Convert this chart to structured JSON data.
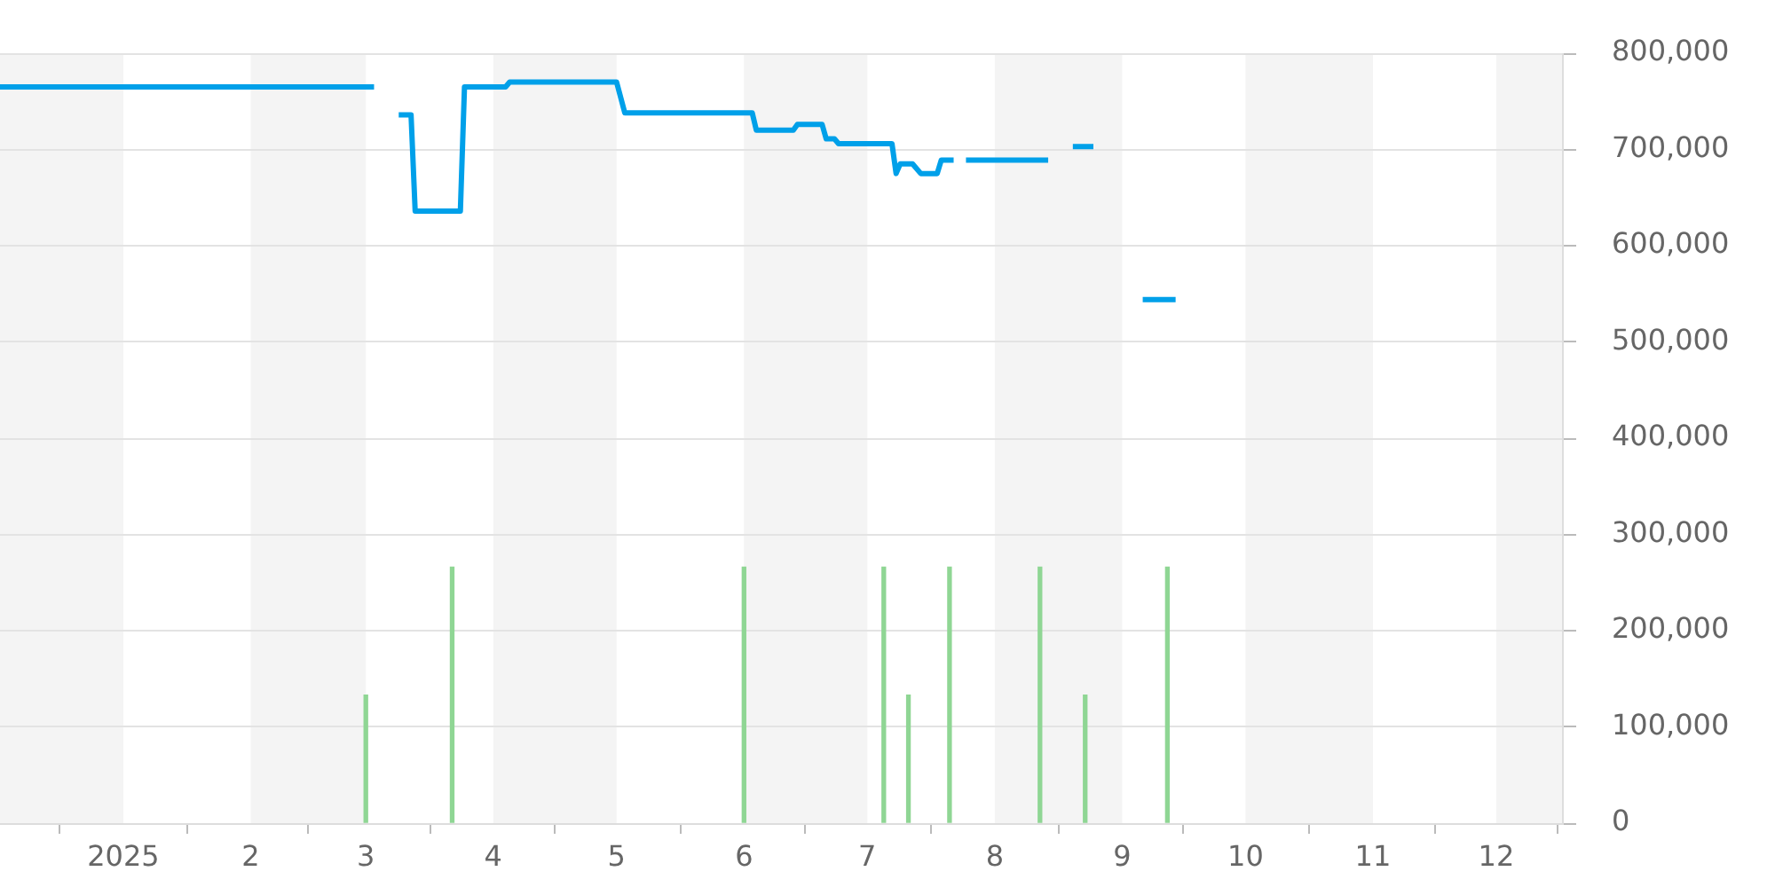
{
  "chart_data": {
    "type": "line",
    "xlim": [
      "2024-12-02",
      "2025-12-17"
    ],
    "xticks": [
      {
        "value": "2025-01-01",
        "label": "2025"
      },
      {
        "value": "2025-02-01",
        "label": "2"
      },
      {
        "value": "2025-03-01",
        "label": "3"
      },
      {
        "value": "2025-04-01",
        "label": "4"
      },
      {
        "value": "2025-05-01",
        "label": "5"
      },
      {
        "value": "2025-06-01",
        "label": "6"
      },
      {
        "value": "2025-07-01",
        "label": "7"
      },
      {
        "value": "2025-08-01",
        "label": "8"
      },
      {
        "value": "2025-09-01",
        "label": "9"
      },
      {
        "value": "2025-10-01",
        "label": "10"
      },
      {
        "value": "2025-11-01",
        "label": "11"
      },
      {
        "value": "2025-12-01",
        "label": "12"
      }
    ],
    "ylim": [
      0,
      800000
    ],
    "yticks": [
      {
        "value": 0,
        "label": "0"
      },
      {
        "value": 100000,
        "label": "100,000"
      },
      {
        "value": 200000,
        "label": "200,000"
      },
      {
        "value": 300000,
        "label": "300,000"
      },
      {
        "value": 400000,
        "label": "400,000"
      },
      {
        "value": 500000,
        "label": "500,000"
      },
      {
        "value": 600000,
        "label": "600,000"
      },
      {
        "value": 700000,
        "label": "700,000"
      },
      {
        "value": 800000,
        "label": "800,000"
      }
    ],
    "grid": "y",
    "bands": [
      {
        "axis": "x",
        "from": "2024-12-02",
        "to": "2025-01-01",
        "color": "#f4f4f4"
      },
      {
        "axis": "x",
        "from": "2025-02-01",
        "to": "2025-03-01",
        "color": "#f4f4f4"
      },
      {
        "axis": "x",
        "from": "2025-04-01",
        "to": "2025-05-01",
        "color": "#f4f4f4"
      },
      {
        "axis": "x",
        "from": "2025-06-01",
        "to": "2025-07-01",
        "color": "#f4f4f4"
      },
      {
        "axis": "x",
        "from": "2025-08-01",
        "to": "2025-09-01",
        "color": "#f4f4f4"
      },
      {
        "axis": "x",
        "from": "2025-10-01",
        "to": "2025-11-01",
        "color": "#f4f4f4"
      },
      {
        "axis": "x",
        "from": "2025-12-01",
        "to": "2025-12-17",
        "color": "#f4f4f4"
      }
    ],
    "series": [
      {
        "type": "bar",
        "color": "#8fd694",
        "x": [
          "2025-03-01",
          "2025-03-22",
          "2025-06-01",
          "2025-07-05",
          "2025-07-11",
          "2025-07-21",
          "2025-08-12",
          "2025-08-23",
          "2025-09-12"
        ],
        "values": [
          133000,
          266000,
          266000,
          266000,
          133000,
          266000,
          266000,
          133000,
          266000
        ]
      },
      {
        "color": "#00a0e9",
        "x": [
          "2024-12-02",
          "2025-03-03",
          "2025-03-06",
          "2025-03-09",
          "2025-03-12",
          "2025-03-13",
          "2025-03-24",
          "2025-03-25",
          "2025-04-04",
          "2025-04-05",
          "2025-05-01",
          "2025-05-03",
          "2025-06-03",
          "2025-06-04",
          "2025-06-13",
          "2025-06-14",
          "2025-06-20",
          "2025-06-21",
          "2025-06-23",
          "2025-06-24",
          "2025-07-07",
          "2025-07-08",
          "2025-07-09",
          "2025-07-12",
          "2025-07-14",
          "2025-07-18",
          "2025-07-19",
          "2025-07-22",
          "2025-07-23",
          "2025-07-25",
          "2025-08-14",
          "2025-08-17",
          "2025-08-20",
          "2025-08-25",
          "2025-08-30",
          "2025-09-06",
          "2025-09-14"
        ],
        "values": [
          765000,
          765000,
          null,
          736000,
          736000,
          636000,
          636000,
          765000,
          765000,
          770000,
          770000,
          738000,
          738000,
          720000,
          720000,
          726000,
          726000,
          711000,
          711000,
          706000,
          706000,
          675000,
          685000,
          685000,
          675000,
          675000,
          689000,
          689000,
          null,
          689000,
          689000,
          null,
          703000,
          703000,
          null,
          544000,
          544000
        ]
      }
    ]
  }
}
